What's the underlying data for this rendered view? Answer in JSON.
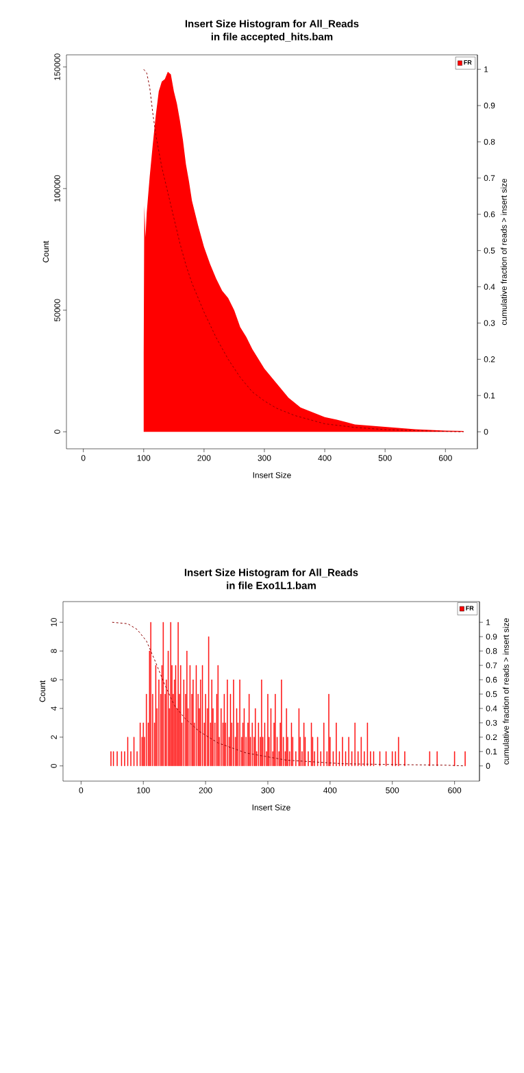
{
  "chart_data": [
    {
      "type": "area",
      "title": "Insert Size Histogram for All_Reads",
      "subtitle": "in file accepted_hits.bam",
      "xlabel": "Insert Size",
      "ylabel": "Count",
      "y2label": "cumulative fraction of reads > insert size",
      "xlim": [
        -28,
        653
      ],
      "ylim": [
        -7000,
        155000
      ],
      "y2lim": [
        -0.047,
        1.04
      ],
      "xticks": [
        0,
        100,
        200,
        300,
        400,
        500,
        600
      ],
      "yticks": [
        0,
        50000,
        100000,
        150000
      ],
      "y2ticks": [
        0,
        0.1,
        0.2,
        0.3,
        0.4,
        0.5,
        0.6,
        0.7,
        0.8,
        0.9,
        1
      ],
      "legend": "top right",
      "series": [
        {
          "name": "FR",
          "color": "#ff0000",
          "x": [
            100,
            101,
            103,
            105,
            110,
            115,
            120,
            125,
            130,
            135,
            140,
            145,
            150,
            155,
            160,
            165,
            170,
            175,
            180,
            190,
            200,
            210,
            220,
            230,
            240,
            250,
            260,
            270,
            280,
            290,
            300,
            320,
            340,
            360,
            380,
            400,
            420,
            450,
            500,
            550,
            600,
            630
          ],
          "values": [
            32000,
            93000,
            80000,
            90000,
            105000,
            118000,
            130000,
            140000,
            144000,
            145000,
            148000,
            147000,
            140000,
            135000,
            128000,
            120000,
            110000,
            103000,
            95000,
            85000,
            76000,
            69000,
            63000,
            58000,
            55000,
            50000,
            43000,
            39000,
            34000,
            30000,
            26000,
            20000,
            14000,
            10000,
            8000,
            6000,
            5000,
            3000,
            2000,
            1000,
            500,
            300
          ]
        },
        {
          "type": "line",
          "axis": "y2",
          "color": "#8b0000",
          "line_style": "dashed",
          "x": [
            100,
            105,
            110,
            115,
            120,
            130,
            140,
            150,
            160,
            170,
            180,
            200,
            220,
            240,
            260,
            280,
            300,
            320,
            350,
            400,
            450,
            500,
            550,
            630
          ],
          "values": [
            1,
            0.99,
            0.95,
            0.88,
            0.82,
            0.73,
            0.66,
            0.59,
            0.52,
            0.46,
            0.41,
            0.33,
            0.26,
            0.2,
            0.15,
            0.11,
            0.085,
            0.065,
            0.045,
            0.022,
            0.012,
            0.006,
            0.003,
            0
          ]
        }
      ]
    },
    {
      "type": "bar",
      "title": "Insert Size Histogram for All_Reads",
      "subtitle": "in file Exo1L1.bam",
      "xlabel": "Insert Size",
      "ylabel": "Count",
      "y2label": "cumulative fraction of reads > insert size",
      "xlim": [
        -29,
        640
      ],
      "ylim": [
        -1.06,
        11.44
      ],
      "y2lim": [
        -0.106,
        1.144
      ],
      "xticks": [
        0,
        100,
        200,
        300,
        400,
        500,
        600
      ],
      "yticks": [
        0,
        2,
        4,
        6,
        8,
        10
      ],
      "y2ticks": [
        0,
        0.1,
        0.2,
        0.3,
        0.4,
        0.5,
        0.6,
        0.7,
        0.8,
        0.9,
        1
      ],
      "legend": "top right",
      "series": [
        {
          "name": "FR",
          "color": "#ff0000",
          "x": [
            48,
            52,
            58,
            65,
            70,
            75,
            80,
            85,
            90,
            95,
            98,
            100,
            102,
            105,
            108,
            110,
            112,
            115,
            118,
            120,
            122,
            125,
            128,
            130,
            132,
            135,
            137,
            140,
            142,
            144,
            146,
            148,
            150,
            152,
            154,
            156,
            158,
            160,
            162,
            165,
            168,
            170,
            172,
            175,
            178,
            180,
            182,
            185,
            188,
            190,
            192,
            195,
            198,
            200,
            203,
            205,
            208,
            210,
            212,
            215,
            218,
            220,
            222,
            225,
            228,
            230,
            232,
            235,
            238,
            240,
            242,
            245,
            248,
            250,
            252,
            255,
            258,
            260,
            262,
            265,
            268,
            270,
            272,
            275,
            278,
            280,
            282,
            285,
            288,
            290,
            292,
            295,
            298,
            300,
            302,
            305,
            308,
            310,
            312,
            315,
            318,
            320,
            322,
            325,
            328,
            330,
            332,
            335,
            338,
            340,
            345,
            350,
            352,
            355,
            358,
            360,
            365,
            370,
            372,
            375,
            380,
            385,
            390,
            395,
            398,
            400,
            405,
            410,
            415,
            420,
            425,
            430,
            435,
            440,
            445,
            450,
            455,
            460,
            465,
            470,
            480,
            490,
            500,
            505,
            510,
            520,
            560,
            572,
            600,
            617
          ],
          "values": [
            1,
            1,
            1,
            1,
            1,
            2,
            1,
            2,
            1,
            3,
            2,
            3,
            2,
            5,
            3,
            8,
            10,
            5,
            3,
            7,
            4,
            6,
            5,
            7,
            10,
            5,
            6,
            8,
            4,
            10,
            7,
            5,
            6,
            7,
            4,
            10,
            5,
            7,
            3,
            6,
            5,
            8,
            4,
            7,
            5,
            6,
            3,
            7,
            5,
            4,
            6,
            7,
            3,
            5,
            4,
            9,
            3,
            6,
            4,
            3,
            5,
            7,
            2,
            4,
            3,
            5,
            3,
            6,
            2,
            5,
            3,
            6,
            2,
            4,
            3,
            6,
            2,
            3,
            4,
            2,
            3,
            5,
            2,
            3,
            2,
            4,
            1,
            3,
            2,
            6,
            2,
            3,
            1,
            5,
            2,
            4,
            1,
            3,
            5,
            2,
            1,
            3,
            6,
            2,
            1,
            4,
            2,
            1,
            3,
            2,
            1,
            4,
            2,
            1,
            3,
            2,
            1,
            3,
            2,
            1,
            2,
            1,
            3,
            1,
            5,
            2,
            1,
            3,
            1,
            2,
            1,
            2,
            1,
            3,
            1,
            2,
            1,
            3,
            1,
            1,
            1,
            1,
            1,
            1,
            2,
            1,
            1,
            1,
            1,
            1
          ]
        },
        {
          "type": "line",
          "axis": "y2",
          "color": "#8b0000",
          "line_style": "dashed",
          "x": [
            50,
            75,
            90,
            105,
            118,
            134,
            150,
            167,
            190,
            220,
            265,
            330,
            420,
            490,
            585,
            617
          ],
          "values": [
            1,
            0.99,
            0.95,
            0.87,
            0.74,
            0.57,
            0.42,
            0.33,
            0.24,
            0.16,
            0.09,
            0.04,
            0.015,
            0.01,
            0.005,
            0
          ]
        }
      ]
    }
  ]
}
